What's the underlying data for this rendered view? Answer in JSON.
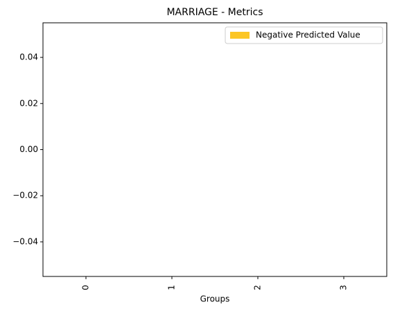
{
  "chart_data": {
    "type": "bar",
    "title": "MARRIAGE - Metrics",
    "x_label": "Groups",
    "categories": [
      "0",
      "1",
      "2",
      "3"
    ],
    "series": [
      {
        "name": "Negative Predicted Value",
        "color": "#fcc624",
        "values": [
          0,
          0,
          0,
          0
        ]
      }
    ],
    "ylim": [
      -0.055,
      0.055
    ],
    "yticks": [
      {
        "value": -0.04,
        "label": "−0.04"
      },
      {
        "value": -0.02,
        "label": "−0.02"
      },
      {
        "value": 0,
        "label": "0.00"
      },
      0.02,
      0.04
    ],
    "grid": false,
    "legend": "upper-right"
  }
}
